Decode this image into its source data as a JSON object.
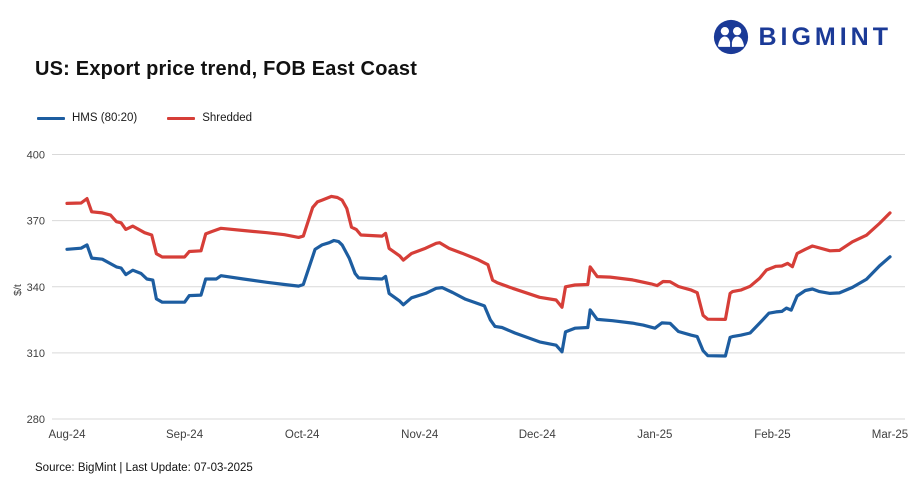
{
  "logo": {
    "text": "BIGMINT",
    "color": "#1b3a97"
  },
  "title": "US: Export price trend, FOB East Coast",
  "source_note": "Source: BigMint | Last Update: 07-03-2025",
  "colors": {
    "grid": "#d9d9d9",
    "axis_text": "#404040",
    "hms_blue": "#1d5da0",
    "shredded_red": "#d63e38"
  },
  "chart_data": {
    "type": "line",
    "title": "US: Export price trend, FOB East Coast",
    "xlabel": "",
    "ylabel": "$/t",
    "ylim": [
      280,
      400
    ],
    "yticks": [
      280,
      310,
      340,
      370,
      400
    ],
    "x_categories": [
      "Aug-24",
      "Sep-24",
      "Oct-24",
      "Nov-24",
      "Dec-24",
      "Jan-25",
      "Feb-25",
      "Mar-25"
    ],
    "x_unit": "months since Aug-24",
    "grid": "horizontal",
    "legend_position": "top-left",
    "series": [
      {
        "name": "HMS (80:20)",
        "color": "#1d5da0",
        "points": [
          [
            0.0,
            357
          ],
          [
            0.12,
            357.5
          ],
          [
            0.17,
            359
          ],
          [
            0.21,
            353
          ],
          [
            0.3,
            352.5
          ],
          [
            0.42,
            349
          ],
          [
            0.46,
            348.5
          ],
          [
            0.5,
            345.5
          ],
          [
            0.56,
            347.5
          ],
          [
            0.63,
            346
          ],
          [
            0.68,
            343.5
          ],
          [
            0.73,
            343
          ],
          [
            0.76,
            334.5
          ],
          [
            0.81,
            333
          ],
          [
            1.0,
            333
          ],
          [
            1.04,
            336
          ],
          [
            1.14,
            336.2
          ],
          [
            1.18,
            343.5
          ],
          [
            1.27,
            343.5
          ],
          [
            1.31,
            345
          ],
          [
            1.5,
            343.5
          ],
          [
            1.7,
            342
          ],
          [
            1.85,
            341
          ],
          [
            1.97,
            340.3
          ],
          [
            2.01,
            341
          ],
          [
            2.11,
            357
          ],
          [
            2.17,
            359
          ],
          [
            2.23,
            360
          ],
          [
            2.27,
            361
          ],
          [
            2.31,
            360.5
          ],
          [
            2.34,
            359
          ],
          [
            2.4,
            353
          ],
          [
            2.45,
            346
          ],
          [
            2.48,
            344
          ],
          [
            2.6,
            343.7
          ],
          [
            2.68,
            343.5
          ],
          [
            2.71,
            344.7
          ],
          [
            2.74,
            337
          ],
          [
            2.83,
            333.5
          ],
          [
            2.86,
            331.8
          ],
          [
            2.93,
            335
          ],
          [
            3.05,
            337
          ],
          [
            3.14,
            339.3
          ],
          [
            3.19,
            339.6
          ],
          [
            3.28,
            337.4
          ],
          [
            3.39,
            334.3
          ],
          [
            3.55,
            331.3
          ],
          [
            3.6,
            325
          ],
          [
            3.64,
            322
          ],
          [
            3.7,
            321.5
          ],
          [
            3.81,
            319
          ],
          [
            4.02,
            315
          ],
          [
            4.16,
            313.5
          ],
          [
            4.21,
            310.5
          ],
          [
            4.24,
            319.5
          ],
          [
            4.32,
            321.2
          ],
          [
            4.43,
            321.5
          ],
          [
            4.45,
            329.5
          ],
          [
            4.51,
            325.2
          ],
          [
            4.64,
            324.6
          ],
          [
            4.81,
            323.5
          ],
          [
            4.9,
            322.6
          ],
          [
            5.0,
            321.2
          ],
          [
            5.06,
            323.6
          ],
          [
            5.13,
            323.4
          ],
          [
            5.2,
            319.7
          ],
          [
            5.31,
            318
          ],
          [
            5.36,
            317.4
          ],
          [
            5.41,
            311
          ],
          [
            5.45,
            308.7
          ],
          [
            5.6,
            308.6
          ],
          [
            5.64,
            317
          ],
          [
            5.66,
            317.4
          ],
          [
            5.73,
            318
          ],
          [
            5.81,
            319
          ],
          [
            5.89,
            323.4
          ],
          [
            5.97,
            328
          ],
          [
            6.03,
            328.6
          ],
          [
            6.08,
            328.8
          ],
          [
            6.12,
            330.3
          ],
          [
            6.16,
            329.4
          ],
          [
            6.21,
            335.8
          ],
          [
            6.28,
            338.3
          ],
          [
            6.34,
            339
          ],
          [
            6.4,
            337.8
          ],
          [
            6.49,
            337
          ],
          [
            6.57,
            337.2
          ],
          [
            6.68,
            339.7
          ],
          [
            6.8,
            343.4
          ],
          [
            6.91,
            349.4
          ],
          [
            7.0,
            353.6
          ]
        ]
      },
      {
        "name": "Shredded",
        "color": "#d63e38",
        "points": [
          [
            0.0,
            377.8
          ],
          [
            0.12,
            378
          ],
          [
            0.17,
            380
          ],
          [
            0.21,
            374
          ],
          [
            0.3,
            373.5
          ],
          [
            0.37,
            372.5
          ],
          [
            0.42,
            369.5
          ],
          [
            0.46,
            369
          ],
          [
            0.5,
            366
          ],
          [
            0.56,
            367.5
          ],
          [
            0.66,
            364.5
          ],
          [
            0.72,
            363.5
          ],
          [
            0.76,
            355
          ],
          [
            0.81,
            353.5
          ],
          [
            1.0,
            353.5
          ],
          [
            1.04,
            356
          ],
          [
            1.14,
            356.3
          ],
          [
            1.18,
            364
          ],
          [
            1.23,
            365
          ],
          [
            1.31,
            366.5
          ],
          [
            1.5,
            365.5
          ],
          [
            1.7,
            364.5
          ],
          [
            1.85,
            363.6
          ],
          [
            1.97,
            362.4
          ],
          [
            2.01,
            363
          ],
          [
            2.09,
            376
          ],
          [
            2.13,
            378.5
          ],
          [
            2.17,
            379.3
          ],
          [
            2.25,
            381
          ],
          [
            2.3,
            380.5
          ],
          [
            2.34,
            379.3
          ],
          [
            2.38,
            375.5
          ],
          [
            2.42,
            367
          ],
          [
            2.46,
            366
          ],
          [
            2.5,
            363.5
          ],
          [
            2.6,
            363.2
          ],
          [
            2.68,
            363
          ],
          [
            2.71,
            364.2
          ],
          [
            2.74,
            357.4
          ],
          [
            2.83,
            354
          ],
          [
            2.86,
            352.1
          ],
          [
            2.93,
            355.1
          ],
          [
            3.05,
            357.5
          ],
          [
            3.14,
            359.7
          ],
          [
            3.17,
            360
          ],
          [
            3.25,
            357.4
          ],
          [
            3.36,
            355.2
          ],
          [
            3.5,
            352.2
          ],
          [
            3.58,
            350
          ],
          [
            3.62,
            343
          ],
          [
            3.66,
            341.8
          ],
          [
            3.79,
            339.3
          ],
          [
            4.02,
            335.2
          ],
          [
            4.16,
            334
          ],
          [
            4.21,
            330.7
          ],
          [
            4.24,
            340
          ],
          [
            4.32,
            340.8
          ],
          [
            4.43,
            341
          ],
          [
            4.45,
            349
          ],
          [
            4.51,
            344.6
          ],
          [
            4.62,
            344.4
          ],
          [
            4.81,
            343.1
          ],
          [
            4.97,
            341.3
          ],
          [
            5.02,
            340.5
          ],
          [
            5.07,
            342.4
          ],
          [
            5.13,
            342.3
          ],
          [
            5.2,
            340.1
          ],
          [
            5.31,
            338.5
          ],
          [
            5.36,
            337.3
          ],
          [
            5.41,
            327
          ],
          [
            5.45,
            325.3
          ],
          [
            5.6,
            325.2
          ],
          [
            5.64,
            337
          ],
          [
            5.66,
            337.8
          ],
          [
            5.73,
            338.5
          ],
          [
            5.81,
            340.2
          ],
          [
            5.89,
            343.8
          ],
          [
            5.95,
            347.6
          ],
          [
            6.03,
            349.3
          ],
          [
            6.08,
            349.4
          ],
          [
            6.13,
            350.6
          ],
          [
            6.17,
            349.1
          ],
          [
            6.21,
            355.1
          ],
          [
            6.28,
            357
          ],
          [
            6.34,
            358.5
          ],
          [
            6.49,
            356.3
          ],
          [
            6.57,
            356.5
          ],
          [
            6.68,
            360.4
          ],
          [
            6.8,
            363.4
          ],
          [
            6.91,
            368.7
          ],
          [
            7.0,
            373.5
          ]
        ]
      }
    ]
  }
}
